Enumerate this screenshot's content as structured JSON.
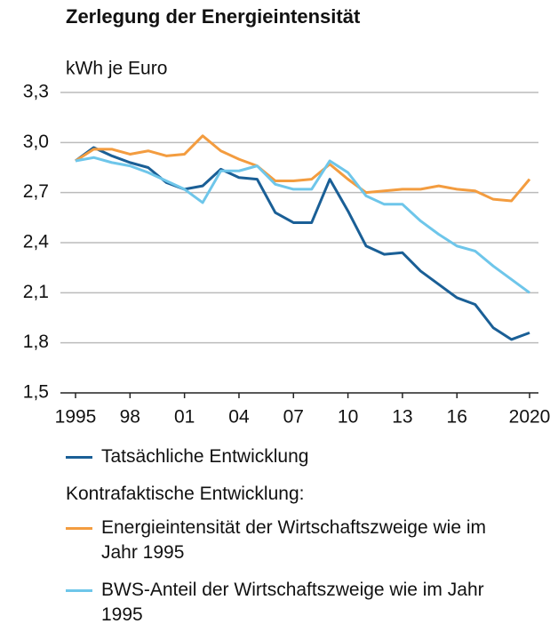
{
  "chart_data": {
    "type": "line",
    "title": "Zerlegung der Energieintensität",
    "y_label": "kWh je Euro",
    "x": [
      1995,
      1996,
      1997,
      1998,
      1999,
      2000,
      2001,
      2002,
      2003,
      2004,
      2005,
      2006,
      2007,
      2008,
      2009,
      2010,
      2011,
      2012,
      2013,
      2014,
      2015,
      2016,
      2017,
      2018,
      2019,
      2020
    ],
    "xlim": [
      1995,
      2020
    ],
    "xticks": [
      1995,
      {
        "value": 1998,
        "label": "98"
      },
      {
        "value": 2001,
        "label": "01"
      },
      {
        "value": 2004,
        "label": "04"
      },
      {
        "value": 2007,
        "label": "07"
      },
      {
        "value": 2010,
        "label": "10"
      },
      {
        "value": 2013,
        "label": "13"
      },
      {
        "value": 2016,
        "label": "16"
      },
      2020
    ],
    "ylim": [
      1.5,
      3.3
    ],
    "yticks": [
      {
        "value": 1.5,
        "label": "1,5"
      },
      {
        "value": 1.8,
        "label": "1,8"
      },
      {
        "value": 2.1,
        "label": "2,1"
      },
      {
        "value": 2.4,
        "label": "2,4"
      },
      {
        "value": 2.7,
        "label": "2,7"
      },
      {
        "value": 3.0,
        "label": "3,0"
      },
      {
        "value": 3.3,
        "label": "3,3"
      }
    ],
    "grid": true,
    "legend_subtitle": "Kontrafaktische Entwicklung:",
    "series": [
      {
        "name": "Tatsächliche Entwicklung",
        "color": "#1a5f96",
        "values": [
          2.89,
          2.97,
          2.92,
          2.88,
          2.85,
          2.76,
          2.72,
          2.74,
          2.84,
          2.79,
          2.78,
          2.58,
          2.52,
          2.52,
          2.78,
          2.59,
          2.38,
          2.33,
          2.34,
          2.23,
          2.15,
          2.07,
          2.03,
          1.89,
          1.82,
          1.86
        ]
      },
      {
        "name": "Energieintensität der Wirtschaftszweige wie im Jahr 1995",
        "color": "#f39c3f",
        "values": [
          2.89,
          2.96,
          2.96,
          2.93,
          2.95,
          2.92,
          2.93,
          3.04,
          2.95,
          2.9,
          2.86,
          2.77,
          2.77,
          2.78,
          2.87,
          2.78,
          2.7,
          2.71,
          2.72,
          2.72,
          2.74,
          2.72,
          2.71,
          2.66,
          2.65,
          2.78
        ]
      },
      {
        "name": "BWS-Anteil der Wirtschaftszweige wie im Jahr 1995",
        "color": "#6ec6ea",
        "values": [
          2.89,
          2.91,
          2.88,
          2.86,
          2.82,
          2.77,
          2.72,
          2.64,
          2.83,
          2.83,
          2.86,
          2.75,
          2.72,
          2.72,
          2.89,
          2.82,
          2.68,
          2.63,
          2.63,
          2.53,
          2.45,
          2.38,
          2.35,
          2.26,
          2.18,
          2.1
        ]
      }
    ]
  }
}
